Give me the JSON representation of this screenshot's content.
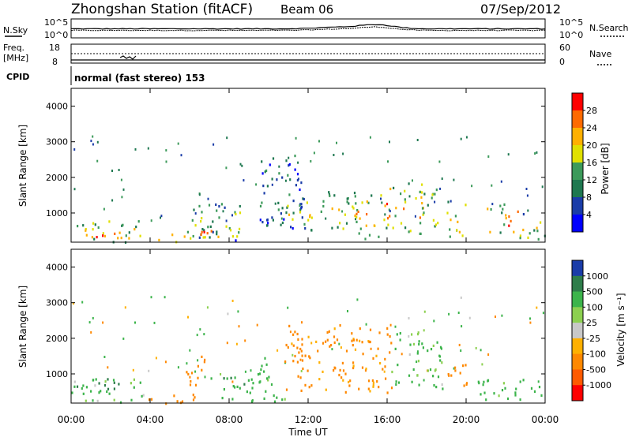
{
  "header": {
    "title": "Zhongshan Station (fitACF)",
    "beam": "Beam 06",
    "date": "07/Sep/2012"
  },
  "panels": {
    "nsky_label": "N.Sky",
    "nsearch_label": "N.Search",
    "freq_label_1": "Freq.",
    "freq_label_2": "[MHz]",
    "nave_label": "Nave",
    "cpid_label": "CPID",
    "mode_text": "normal (fast stereo) 153",
    "noise_ticks_left": [
      "10^5",
      "10^0"
    ],
    "noise_ticks_right": [
      "10^5",
      "10^0"
    ],
    "freq_ticks": [
      "18",
      "8"
    ],
    "nave_ticks": [
      "60",
      "0"
    ]
  },
  "axes": {
    "xlabel": "Time UT",
    "ylabel": "Slant Range [km]",
    "x_ticks": [
      "00:00",
      "04:00",
      "08:00",
      "12:00",
      "16:00",
      "20:00",
      "00:00"
    ],
    "y_ticks": [
      "4000",
      "3000",
      "2000",
      "1000"
    ]
  },
  "colorbars": {
    "power": {
      "label": "Power [dB]",
      "ticks": [
        "28",
        "24",
        "20",
        "16",
        "12",
        "8",
        "4"
      ],
      "colors": [
        "#ff0000",
        "#ff6a00",
        "#ffb000",
        "#e0e000",
        "#3c9a5a",
        "#1e7850",
        "#1a3ca8",
        "#0000ff"
      ]
    },
    "velocity": {
      "label": "Velocity [m s⁻¹]",
      "ticks": [
        "1000",
        "500",
        "100",
        "25",
        "-25",
        "-100",
        "-500",
        "-1000"
      ],
      "colors": [
        "#1a3ca8",
        "#2e7d4a",
        "#3cb44b",
        "#8cd050",
        "#c8c8c8",
        "#ffb000",
        "#ff8800",
        "#ff5a00",
        "#ff0000"
      ]
    }
  },
  "chart_data": [
    {
      "type": "heatmap",
      "title": "Power",
      "xlabel": "Time UT",
      "ylabel": "Slant Range [km]",
      "xlim": [
        0,
        24
      ],
      "ylim": [
        180,
        4500
      ],
      "colorbar_label": "Power [dB]",
      "colorbar_range": [
        0,
        30
      ],
      "blobs": [
        {
          "t0": 0.0,
          "t1": 3.8,
          "r0": 200,
          "r1": 800,
          "v": 20
        },
        {
          "t0": 0.3,
          "t1": 3.0,
          "r0": 300,
          "r1": 500,
          "v": 28
        },
        {
          "t0": 3.8,
          "t1": 6.8,
          "r0": 180,
          "r1": 450,
          "v": 22
        },
        {
          "t0": 5.8,
          "t1": 8.6,
          "r0": 250,
          "r1": 1350,
          "v": 16
        },
        {
          "t0": 6.5,
          "t1": 9.8,
          "r0": 350,
          "r1": 600,
          "v": 26
        },
        {
          "t0": 9.5,
          "t1": 11.8,
          "r0": 600,
          "r1": 2700,
          "v": 8
        },
        {
          "t0": 10.8,
          "t1": 12.8,
          "r0": 500,
          "r1": 1400,
          "v": 18
        },
        {
          "t0": 13.0,
          "t1": 14.6,
          "r0": 500,
          "r1": 1700,
          "v": 16
        },
        {
          "t0": 14.3,
          "t1": 15.7,
          "r0": 300,
          "r1": 1600,
          "v": 20
        },
        {
          "t0": 15.8,
          "t1": 17.8,
          "r0": 500,
          "r1": 1900,
          "v": 24
        },
        {
          "t0": 17.6,
          "t1": 18.6,
          "r0": 400,
          "r1": 1800,
          "v": 18
        },
        {
          "t0": 19.0,
          "t1": 20.0,
          "r0": 350,
          "r1": 1400,
          "v": 22
        },
        {
          "t0": 21.0,
          "t1": 21.9,
          "r0": 350,
          "r1": 1300,
          "v": 20
        },
        {
          "t0": 21.9,
          "t1": 22.6,
          "r0": 400,
          "r1": 1300,
          "v": 28
        },
        {
          "t0": 22.6,
          "t1": 24.0,
          "r0": 250,
          "r1": 1000,
          "v": 16
        }
      ]
    },
    {
      "type": "heatmap",
      "title": "Velocity",
      "xlabel": "Time UT",
      "ylabel": "Slant Range [km]",
      "xlim": [
        0,
        24
      ],
      "ylim": [
        180,
        4500
      ],
      "colorbar_label": "Velocity [m s⁻¹]",
      "colorbar_range": [
        -1000,
        1000
      ],
      "blobs": [
        {
          "t0": 0.0,
          "t1": 3.8,
          "r0": 200,
          "r1": 900,
          "v": 150
        },
        {
          "t0": 0.0,
          "t1": 2.5,
          "r0": 600,
          "r1": 900,
          "v": 800
        },
        {
          "t0": 3.8,
          "t1": 6.6,
          "r0": 180,
          "r1": 450,
          "v": -300
        },
        {
          "t0": 5.8,
          "t1": 6.8,
          "r0": 350,
          "r1": 1600,
          "v": -300
        },
        {
          "t0": 7.0,
          "t1": 9.6,
          "r0": 250,
          "r1": 1000,
          "v": 400
        },
        {
          "t0": 9.4,
          "t1": 10.8,
          "r0": 200,
          "r1": 1500,
          "v": 200
        },
        {
          "t0": 10.8,
          "t1": 16.2,
          "r0": 500,
          "r1": 2400,
          "v": -200
        },
        {
          "t0": 16.2,
          "t1": 18.8,
          "r0": 600,
          "r1": 2200,
          "v": 150
        },
        {
          "t0": 18.8,
          "t1": 20.0,
          "r0": 500,
          "r1": 1300,
          "v": -300
        },
        {
          "t0": 20.5,
          "t1": 24.0,
          "r0": 250,
          "r1": 900,
          "v": 200
        }
      ]
    }
  ]
}
